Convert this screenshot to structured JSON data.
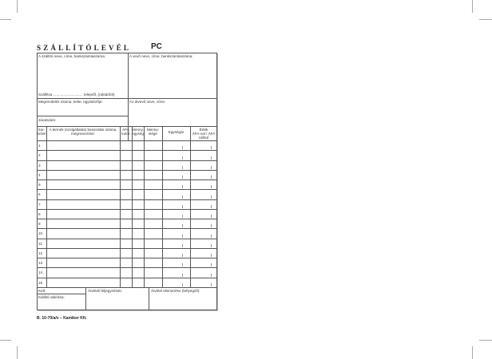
{
  "header": {
    "title": "SZÁLLÍTÓLEVÉL",
    "code": "PC"
  },
  "fields": {
    "supplier": "A szállító neve, címe, bankszámlaszáma:",
    "buyer": "A vevő neve, címe, bankszámlaszáma:",
    "shipment": "Szállítva ............................. telepről, (raktárból)",
    "order": "Megrendelés száma, kelte, ügyintézője:",
    "receiver": "Az átvevő neve, címe:",
    "vehicle": "Járatszám:"
  },
  "table": {
    "columns": [
      "Sor-\nszám",
      "A termék (szolgáltatás) besorolási száma,\nmegnevezése:",
      "ÁFA\nkulcs",
      "Menny.\negység",
      "Menny-\nisége",
      "Egységár",
      "Érték\nÁFA-val / ÁFA nélkül"
    ],
    "rows": [
      "1",
      "2",
      "3",
      "4",
      "5",
      "6",
      "7",
      "8",
      "9",
      "10",
      "11",
      "12",
      "13",
      "14",
      "15"
    ]
  },
  "footer": {
    "date": "Kelt:",
    "issuer_signature": "Kiállító aláírása:",
    "delivery_notes": "Átvételi feljegyzések:",
    "receipt_confirmation": "Átvétel elismerése (bélyegző):"
  },
  "imprint": "B. 10-70/a/v  –  Kamiker Kft."
}
